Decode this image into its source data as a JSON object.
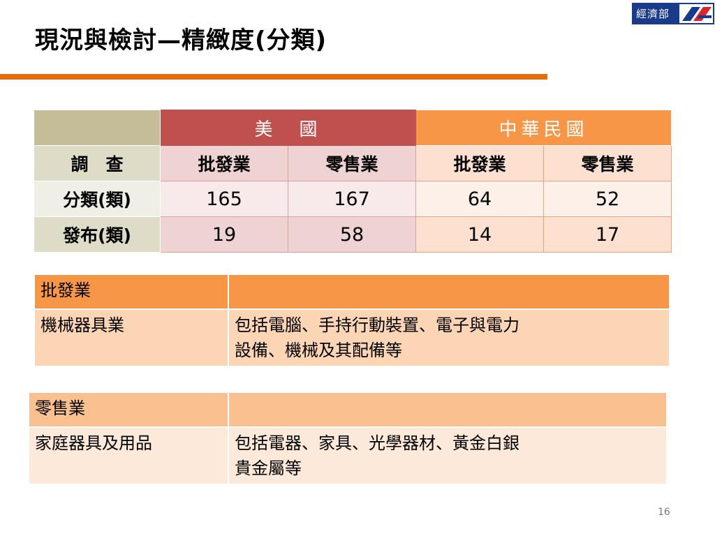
{
  "logo": {
    "text": "經濟部"
  },
  "title": "現況與檢討—精緻度(分類)",
  "table": {
    "header": {
      "us": "美　國",
      "tw": "中華民國"
    },
    "survey_label": "調　查",
    "survey": [
      "批發業",
      "零售業",
      "批發業",
      "零售業"
    ],
    "rows": [
      {
        "label": "分類(類)",
        "values": [
          "165",
          "167",
          "64",
          "52"
        ]
      },
      {
        "label": "發布(類)",
        "values": [
          "19",
          "58",
          "14",
          "17"
        ]
      }
    ]
  },
  "wholesale": {
    "header": "批發業",
    "header_right": "",
    "category": "機械器具業",
    "description_line1": "包括電腦、手持行動裝置、電子與電力",
    "description_line2": "設備、機械及其配備等"
  },
  "retail": {
    "header": "零售業",
    "header_right": "",
    "category": "家庭器具及用品",
    "description_line1": "包括電器、家具、光學器材、黃金白銀",
    "description_line2": "貴金屬等"
  },
  "page_number": "16",
  "colors": {
    "accent": "#e46c0a",
    "us_header": "#c0504d",
    "tw_header": "#f79646",
    "logo_bg": "#1a3a8c"
  }
}
